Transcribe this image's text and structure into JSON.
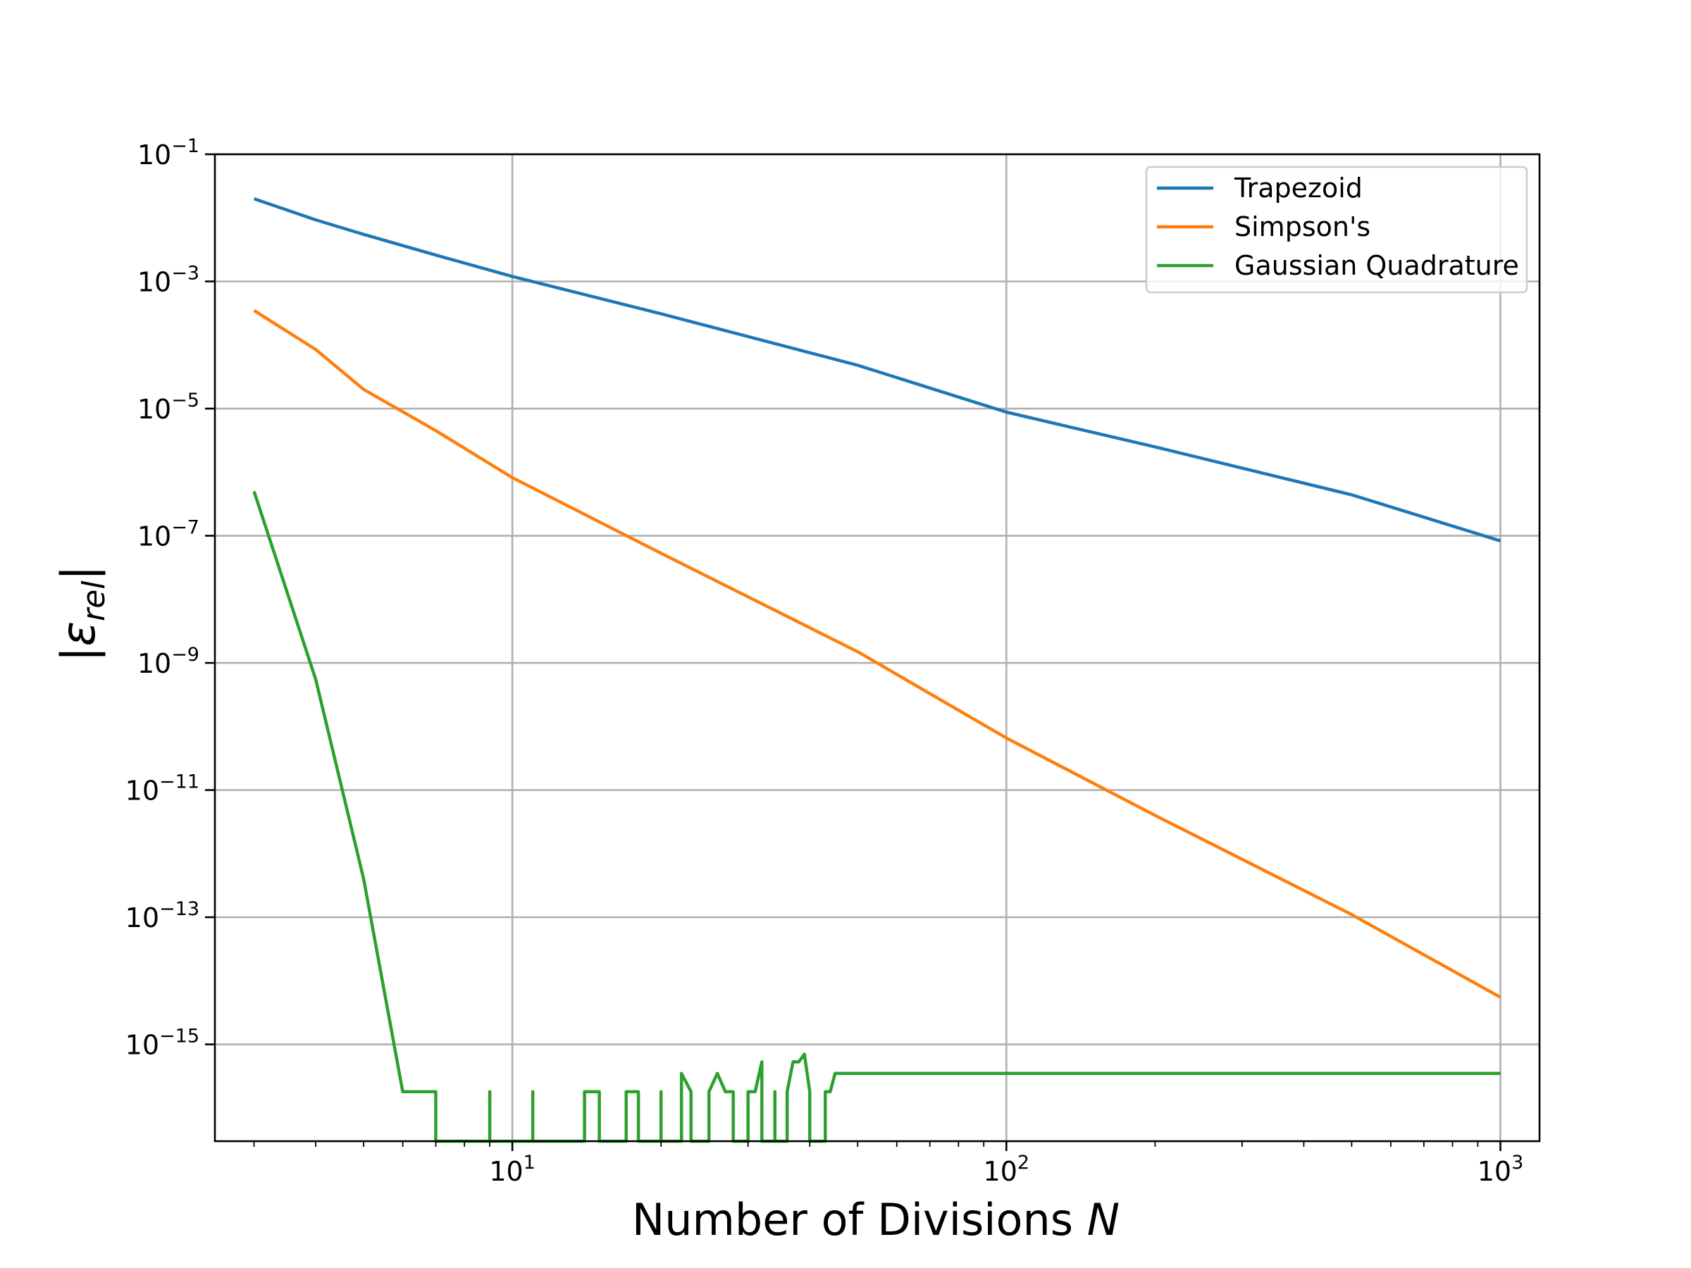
{
  "chart_data": {
    "type": "line",
    "xlabel": "Number of Divisions N",
    "xlabel_main": "Number of Divisions ",
    "xlabel_var": "N",
    "ylabel": "|ε_rel|",
    "ylabel_bar": "|",
    "ylabel_sym": "ε",
    "ylabel_sub": "rel",
    "x_scale": "log",
    "y_scale": "log",
    "xlim": [
      2.5,
      1200
    ],
    "ylim": [
      3e-17,
      0.1
    ],
    "grid": true,
    "legend_position": "top-right",
    "x_ticks": [
      {
        "value": 10,
        "base": "10",
        "exp": "1"
      },
      {
        "value": 100,
        "base": "10",
        "exp": "2"
      },
      {
        "value": 1000,
        "base": "10",
        "exp": "3"
      }
    ],
    "y_ticks": [
      {
        "value": 0.1,
        "base": "10",
        "exp": "−1"
      },
      {
        "value": 0.001,
        "base": "10",
        "exp": "−3"
      },
      {
        "value": 1e-05,
        "base": "10",
        "exp": "−5"
      },
      {
        "value": 1e-07,
        "base": "10",
        "exp": "−7"
      },
      {
        "value": 1e-09,
        "base": "10",
        "exp": "−9"
      },
      {
        "value": 1e-11,
        "base": "10",
        "exp": "−11"
      },
      {
        "value": 1e-13,
        "base": "10",
        "exp": "−13"
      },
      {
        "value": 1e-15,
        "base": "10",
        "exp": "−15"
      }
    ],
    "series": [
      {
        "name": "Trapezoid",
        "color": "#1f77b4",
        "points": [
          [
            3,
            0.02
          ],
          [
            4,
            0.0093
          ],
          [
            5,
            0.0055
          ],
          [
            7,
            0.0026
          ],
          [
            10,
            0.0012
          ],
          [
            20,
            0.00031
          ],
          [
            50,
            4.8e-05
          ],
          [
            100,
            8.8e-06
          ],
          [
            200,
            2.5e-06
          ],
          [
            500,
            4.4e-07
          ],
          [
            1000,
            8.3e-08
          ]
        ]
      },
      {
        "name": "Simpson's",
        "color": "#ff7f0e",
        "points": [
          [
            3,
            0.00035
          ],
          [
            4,
            8.5e-05
          ],
          [
            5,
            2e-05
          ],
          [
            7,
            4.5e-06
          ],
          [
            10,
            8.2e-07
          ],
          [
            20,
            5.3e-08
          ],
          [
            50,
            1.5e-09
          ],
          [
            100,
            6.6e-11
          ],
          [
            200,
            4e-12
          ],
          [
            500,
            1.1e-13
          ],
          [
            1000,
            5.5e-15
          ]
        ]
      },
      {
        "name": "Gaussian Quadrature",
        "color": "#2ca02c",
        "points": [
          [
            3,
            5e-07
          ],
          [
            4,
            5.5e-10
          ],
          [
            5,
            4e-13
          ],
          [
            6,
            1.8e-16
          ],
          [
            7,
            1.8e-16
          ],
          [
            7,
            3e-17
          ],
          [
            9,
            3e-17
          ],
          [
            9,
            1.8e-16
          ],
          [
            9,
            3e-17
          ],
          [
            11,
            3e-17
          ],
          [
            11,
            1.8e-16
          ],
          [
            11,
            3e-17
          ],
          [
            14,
            3e-17
          ],
          [
            14,
            1.8e-16
          ],
          [
            15,
            1.8e-16
          ],
          [
            15,
            3e-17
          ],
          [
            17,
            3e-17
          ],
          [
            17,
            1.8e-16
          ],
          [
            18,
            1.8e-16
          ],
          [
            18,
            3e-17
          ],
          [
            20,
            3e-17
          ],
          [
            20,
            1.8e-16
          ],
          [
            20,
            3e-17
          ],
          [
            22,
            3e-17
          ],
          [
            22,
            3.5e-16
          ],
          [
            23,
            1.8e-16
          ],
          [
            23,
            3e-17
          ],
          [
            25,
            3e-17
          ],
          [
            25,
            1.8e-16
          ],
          [
            26,
            3.5e-16
          ],
          [
            27,
            1.8e-16
          ],
          [
            28,
            1.8e-16
          ],
          [
            28,
            3e-17
          ],
          [
            30,
            3e-17
          ],
          [
            30,
            1.8e-16
          ],
          [
            31,
            1.8e-16
          ],
          [
            32,
            5.3e-16
          ],
          [
            32,
            3e-17
          ],
          [
            34,
            3e-17
          ],
          [
            34,
            1.8e-16
          ],
          [
            34,
            3e-17
          ],
          [
            36,
            3e-17
          ],
          [
            36,
            1.8e-16
          ],
          [
            37,
            5.3e-16
          ],
          [
            38,
            5.3e-16
          ],
          [
            39,
            7e-16
          ],
          [
            40,
            1.8e-16
          ],
          [
            40,
            3e-17
          ],
          [
            43,
            3e-17
          ],
          [
            43,
            1.8e-16
          ],
          [
            44,
            1.8e-16
          ],
          [
            45,
            3.5e-16
          ],
          [
            1000,
            3.5e-16
          ]
        ]
      }
    ]
  }
}
